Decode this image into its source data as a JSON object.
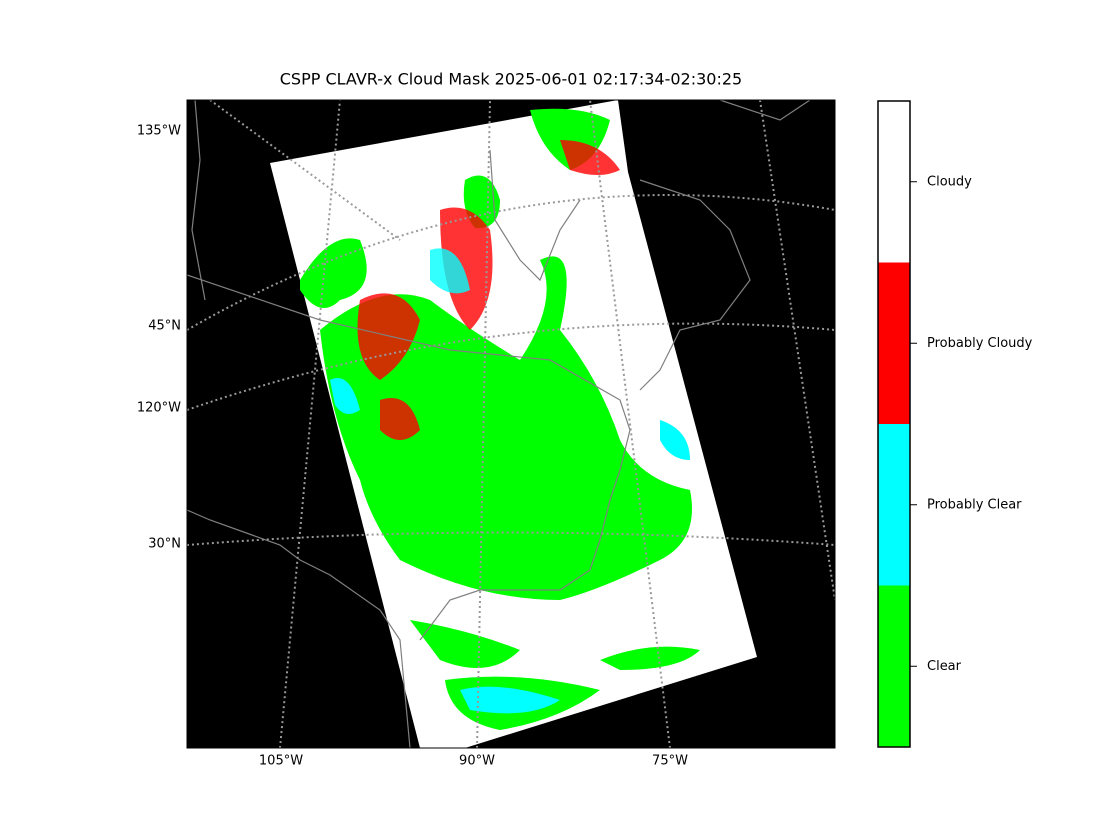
{
  "title": "CSPP CLAVR-x Cloud Mask 2025-06-01 02:17:34-02:30:25",
  "map": {
    "left_labels": [
      "135°W",
      "45°N",
      "120°W",
      "30°N"
    ],
    "bottom_labels": [
      "105°W",
      "90°W",
      "75°W"
    ],
    "background": "#000000",
    "coastline_color": "#808080"
  },
  "colorbar": {
    "categories": [
      {
        "label": "Clear",
        "color": "#00ff00"
      },
      {
        "label": "Probably Clear",
        "color": "#00ffff"
      },
      {
        "label": "Probably Cloudy",
        "color": "#ff0000"
      },
      {
        "label": "Cloudy",
        "color": "#ffffff"
      }
    ]
  }
}
